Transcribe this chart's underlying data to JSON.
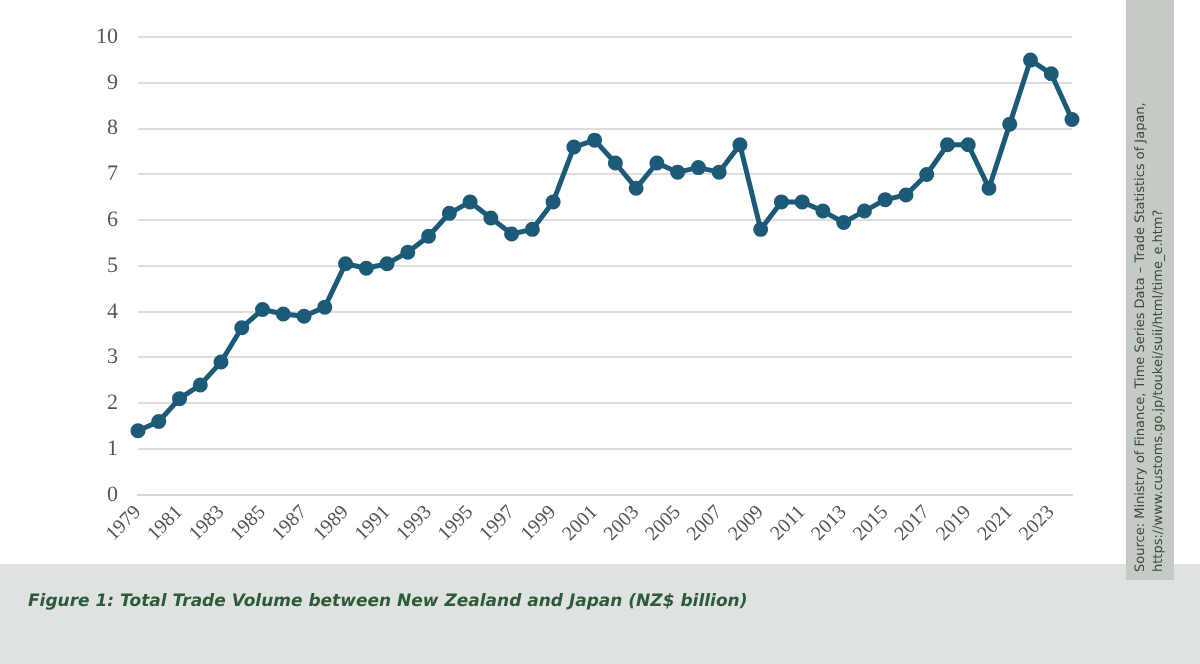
{
  "chart_data": {
    "type": "line",
    "title": "Figure 1: Total Trade Volume between New Zealand and Japan (NZ$ billion)",
    "annotations": [
      "Source: Ministry of Finance, Time Series Data – Trade Statistics of Japan, https://www.customs.go.jp/toukei/suii/html/time_e.htm?"
    ],
    "categories": [
      "1979",
      null,
      "1981",
      null,
      "1983",
      null,
      "1985",
      null,
      "1987",
      null,
      "1989",
      null,
      "1991",
      null,
      "1993",
      null,
      "1995",
      null,
      "1997",
      null,
      "1999",
      null,
      "2001",
      null,
      "2003",
      null,
      "2005",
      null,
      "2007",
      null,
      "2009",
      null,
      "2011",
      null,
      "2013",
      null,
      "2015",
      null,
      "2017",
      null,
      "2019",
      null,
      "2021",
      null,
      "2023",
      null
    ],
    "series": [
      {
        "color": "#1c5a78",
        "values": [
          1.4,
          1.6,
          2.1,
          2.4,
          2.9,
          3.65,
          4.05,
          3.95,
          3.9,
          4.1,
          5.05,
          4.95,
          5.05,
          5.3,
          5.65,
          6.15,
          6.4,
          6.05,
          5.7,
          5.8,
          6.4,
          7.6,
          7.75,
          7.25,
          6.7,
          7.25,
          7.05,
          7.15,
          7.05,
          7.65,
          5.8,
          6.4,
          6.4,
          6.2,
          5.95,
          6.2,
          6.45,
          6.55,
          7.0,
          7.65,
          7.65,
          6.7,
          8.1,
          9.5,
          9.2,
          8.2
        ]
      }
    ],
    "ylim": [
      0,
      10
    ],
    "yticks": [
      0,
      1,
      2,
      3,
      4,
      5,
      6,
      7,
      8,
      9,
      10
    ],
    "grid": "y",
    "legend": false,
    "marker": "circle",
    "line_style": "solid"
  }
}
